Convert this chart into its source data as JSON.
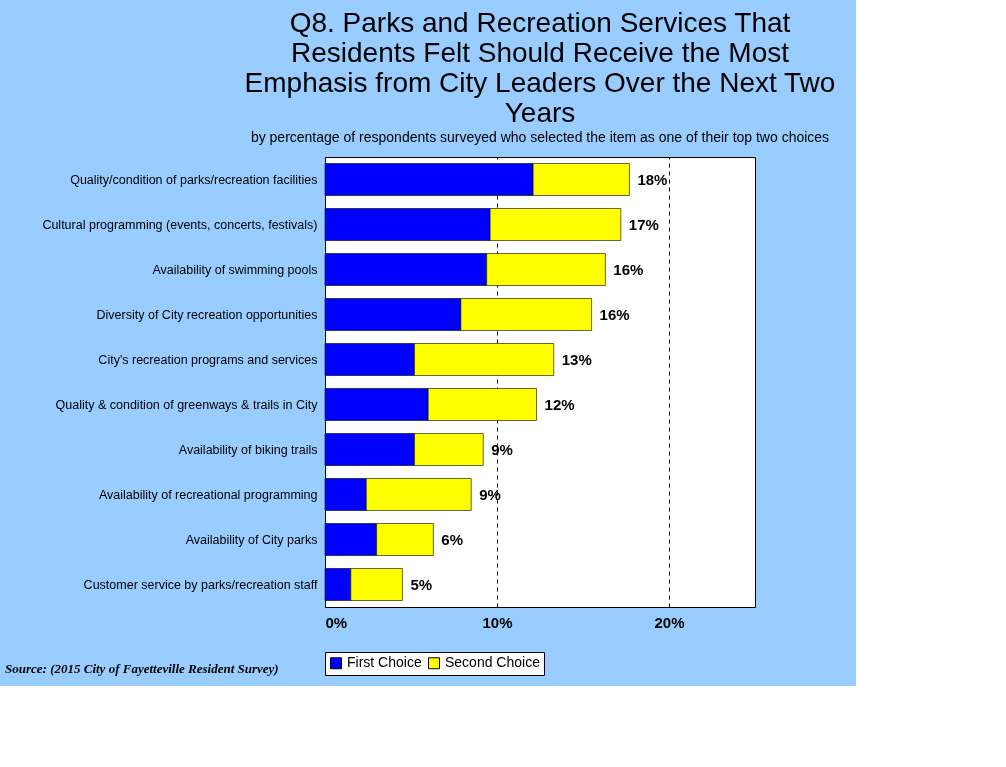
{
  "chart_data": {
    "type": "bar",
    "orientation": "horizontal",
    "stacked": true,
    "title": "Q8. Parks and Recreation Services That Residents Felt Should Receive the Most Emphasis from City Leaders Over the Next Two Years",
    "subtitle": "by percentage of respondents surveyed who selected the item as one of their top two choices",
    "categories": [
      "Quality/condition of parks/recreation facilities",
      "Cultural programming (events, concerts, festivals)",
      "Availability of swimming pools",
      "Diversity of City recreation opportunities",
      "City's recreation programs and services",
      "Quality & condition of greenways & trails in City",
      "Availability of biking trails",
      "Availability of recreational programming",
      "Availability of City parks",
      "Customer service by parks/recreation staff"
    ],
    "series": [
      {
        "name": "First Choice",
        "color": "#0000ff",
        "values": [
          12.1,
          9.6,
          9.4,
          7.9,
          5.2,
          6.0,
          5.2,
          2.4,
          3.0,
          1.5
        ]
      },
      {
        "name": "Second Choice",
        "color": "#ffff00",
        "values": [
          5.6,
          7.6,
          6.9,
          7.6,
          8.1,
          6.3,
          4.0,
          6.1,
          3.3,
          3.0
        ]
      }
    ],
    "totals": [
      "18%",
      "17%",
      "16%",
      "16%",
      "13%",
      "12%",
      "9%",
      "9%",
      "6%",
      "5%"
    ],
    "xlim": [
      0,
      25
    ],
    "xticks": [
      {
        "value": 0,
        "label": "0%"
      },
      {
        "value": 10,
        "label": "10%"
      },
      {
        "value": 20,
        "label": "20%"
      }
    ],
    "grid": "x",
    "legend": "bottom",
    "annotations": [
      "Source: (2015 City of Fayetteville Resident Survey)"
    ]
  }
}
